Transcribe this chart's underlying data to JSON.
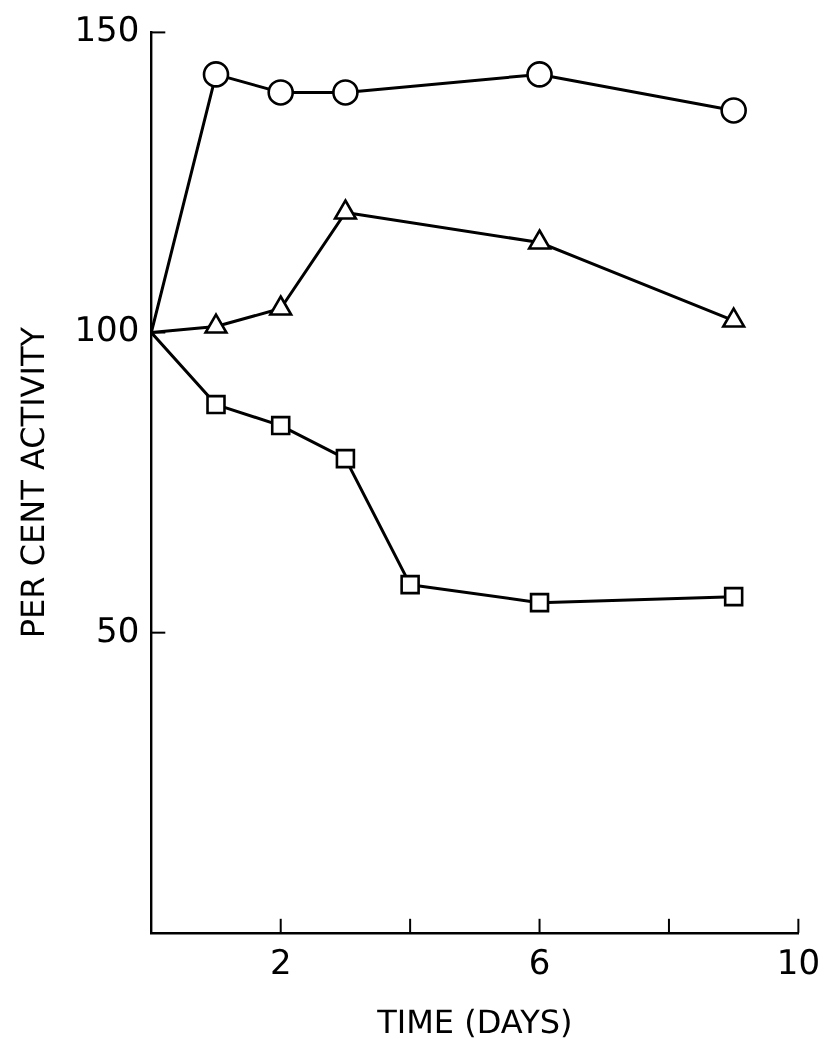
{
  "chart_data": {
    "type": "line",
    "xlabel": "TIME (DAYS)",
    "ylabel": "PER CENT ACTIVITY",
    "xlim": [
      0,
      10
    ],
    "xticks": [
      {
        "value": 2,
        "label": "2"
      },
      {
        "value": 4,
        "label": null
      },
      {
        "value": 6,
        "label": "6"
      },
      {
        "value": 8,
        "label": null
      },
      {
        "value": 10,
        "label": "10"
      }
    ],
    "ylim": [
      0,
      150
    ],
    "yticks": [
      50,
      100,
      150
    ],
    "grid": false,
    "legend": false,
    "line_style": "solid",
    "series": [
      {
        "color": "#000000",
        "marker": "circle",
        "x": [
          0,
          1,
          2,
          3,
          6,
          9
        ],
        "values": [
          100,
          143,
          140,
          140,
          143,
          137
        ]
      },
      {
        "color": "#000000",
        "marker": "triangle",
        "x": [
          0,
          1,
          2,
          3,
          6,
          9
        ],
        "values": [
          100,
          101,
          104,
          120,
          115,
          102
        ]
      },
      {
        "color": "#000000",
        "marker": "square",
        "x": [
          0,
          1,
          2,
          3,
          4,
          6,
          9
        ],
        "values": [
          100,
          88,
          84.5,
          79,
          58,
          55,
          56
        ]
      }
    ]
  }
}
